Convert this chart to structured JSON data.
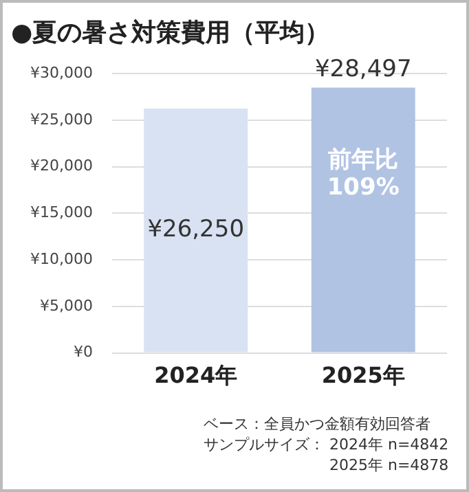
{
  "chart_data": {
    "type": "bar",
    "title": "●夏の暑さ対策費用（平均）",
    "categories": [
      "2024年",
      "2025年"
    ],
    "values": [
      26250,
      28497
    ],
    "colors": [
      "#d9e2f2",
      "#b0c3e3"
    ],
    "value_labels": [
      "¥26,250",
      "¥28,497"
    ],
    "ylim": [
      0,
      30000
    ],
    "yticks": [
      {
        "value": 0,
        "label": "¥0"
      },
      {
        "value": 5000,
        "label": "¥5,000"
      },
      {
        "value": 10000,
        "label": "¥10,000"
      },
      {
        "value": 15000,
        "label": "¥15,000"
      },
      {
        "value": 20000,
        "label": "¥20,000"
      },
      {
        "value": 25000,
        "label": "¥25,000"
      },
      {
        "value": 30000,
        "label": "¥30,000"
      }
    ],
    "grid": "y",
    "legend": false,
    "annotations": [
      "前年比\n109%",
      "ベース：全員かつ金額有効回答者",
      "サンプルサイズ： 2024年 n=4842",
      "2025年 n=4878"
    ]
  }
}
